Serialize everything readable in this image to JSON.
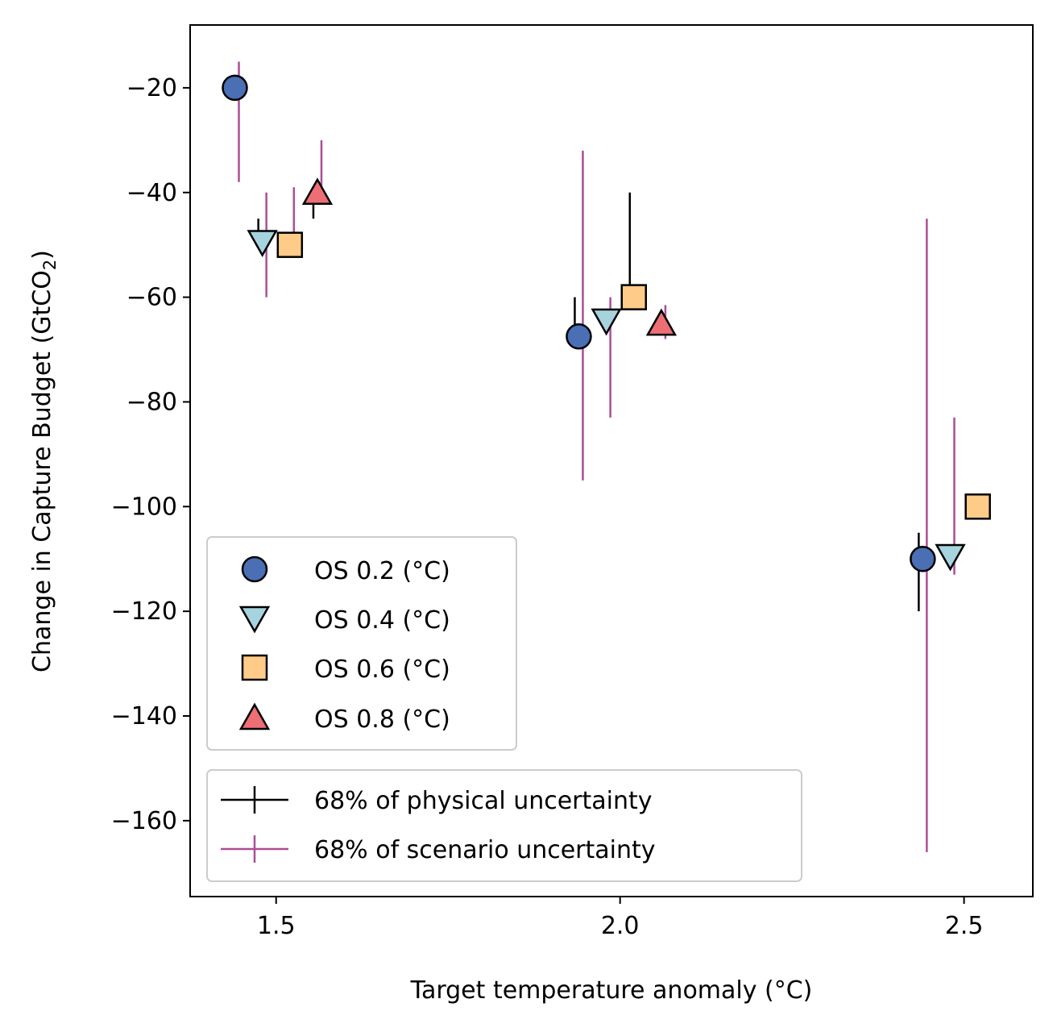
{
  "chart_data": {
    "type": "scatter",
    "xlabel": "Target temperature anomaly (°C)",
    "ylabel_main": "Change in Capture Budget (GtCO",
    "ylabel_sub": "2",
    "ylabel_end": ")",
    "xlim": [
      1.375,
      2.6
    ],
    "ylim": [
      -174.5,
      -8
    ],
    "xticks": [
      1.5,
      2.0,
      2.5
    ],
    "xtick_labels": [
      "1.5",
      "2.0",
      "2.5"
    ],
    "yticks": [
      -20,
      -40,
      -60,
      -80,
      -100,
      -120,
      -140,
      -160
    ],
    "ytick_labels": [
      "−20",
      "−40",
      "−60",
      "−80",
      "−100",
      "−120",
      "−140",
      "−160"
    ],
    "grid": false,
    "series": [
      {
        "name": "OS 0.2 (°C)",
        "marker": "circle",
        "color": "#4a6fb5",
        "x": [
          1.44,
          1.94,
          2.44
        ],
        "y": [
          -20,
          -67.5,
          -110
        ],
        "phys_err": [
          null,
          [
            -67.5,
            -60
          ],
          [
            -120,
            -105
          ]
        ],
        "scen_err": [
          [
            -38,
            -15
          ],
          [
            -95,
            -32
          ],
          [
            -166,
            -45
          ]
        ]
      },
      {
        "name": "OS 0.4 (°C)",
        "marker": "triangle-down",
        "color": "#a6d3de",
        "x": [
          1.48,
          1.98,
          2.48
        ],
        "y": [
          -49.5,
          -64.5,
          -109.5
        ],
        "phys_err": [
          [
            -49.5,
            -45
          ],
          null,
          null
        ],
        "scen_err": [
          [
            -60,
            -40
          ],
          [
            -83,
            -60
          ],
          [
            -113,
            -83
          ]
        ]
      },
      {
        "name": "OS 0.6 (°C)",
        "marker": "square",
        "color": "#fecb88",
        "x": [
          1.52,
          2.02,
          2.52
        ],
        "y": [
          -50,
          -60,
          -100
        ],
        "phys_err": [
          null,
          [
            -60,
            -40
          ],
          null
        ],
        "scen_err": [
          [
            -50,
            -39
          ],
          null,
          null
        ]
      },
      {
        "name": "OS 0.8 (°C)",
        "marker": "triangle-up",
        "color": "#ee6e76",
        "x": [
          1.56,
          2.06
        ],
        "y": [
          -40,
          -65
        ],
        "phys_err": [
          [
            -45,
            -40
          ],
          null
        ],
        "scen_err": [
          [
            -40,
            -30
          ],
          [
            -68,
            -61.5
          ]
        ]
      }
    ],
    "legend_uncertainty": [
      {
        "label": "68% of physical uncertainty",
        "color": "#000000"
      },
      {
        "label": "68% of scenario uncertainty",
        "color": "#aa4e96"
      }
    ],
    "marker_legend_position": "lower-left (upper)",
    "uncertainty_legend_position": "lower-left"
  }
}
